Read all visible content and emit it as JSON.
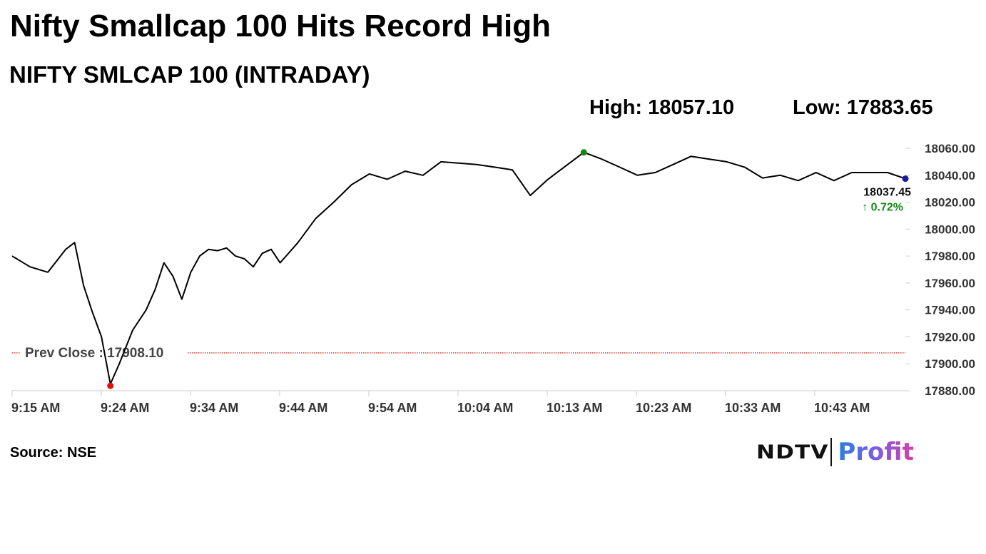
{
  "header": {
    "title": "Nifty Smallcap 100 Hits Record High",
    "subtitle": "NIFTY SMLCAP 100 (INTRADAY)",
    "high_label": "High: 18057.10",
    "low_label": "Low: 17883.65"
  },
  "footer": {
    "source": "Source: NSE",
    "logo_ndtv": "NDTV",
    "logo_profit": "Profit"
  },
  "colors": {
    "line": "#000000",
    "prev_close": "#cc0000",
    "high_marker": "#118811",
    "low_marker": "#dd1111",
    "last_marker": "#1a1aa8",
    "change": "#138a13"
  },
  "chart_data": {
    "type": "line",
    "ylim": [
      17880,
      18060
    ],
    "yticks": [
      "18060.00",
      "18040.00",
      "18020.00",
      "18000.00",
      "17980.00",
      "17960.00",
      "17940.00",
      "17920.00",
      "17900.00",
      "17880.00"
    ],
    "xticks": [
      "9:15 AM",
      "9:24 AM",
      "9:34 AM",
      "9:44 AM",
      "9:54 AM",
      "10:04 AM",
      "10:13 AM",
      "10:23 AM",
      "10:33 AM",
      "10:43 AM"
    ],
    "prev_close": 17908.1,
    "prev_close_label": "Prev Close : 17908.10",
    "high": 18057.1,
    "low": 17883.65,
    "last": 18037.45,
    "last_label": "18037.45",
    "change_label": "↑ 0.72%",
    "series": [
      {
        "x": [
          0,
          2,
          4,
          6,
          7,
          8,
          9,
          10,
          11,
          12,
          13.5,
          15,
          16,
          17,
          18,
          19,
          20,
          21,
          22,
          23,
          24,
          25,
          26,
          27,
          28,
          29,
          30,
          32,
          34,
          36,
          38,
          40,
          42,
          44,
          46,
          48,
          50,
          52,
          54,
          56,
          58,
          60,
          62,
          64,
          66,
          68,
          70,
          72,
          74,
          76,
          78,
          80,
          82,
          84,
          86,
          88,
          90,
          92,
          94,
          96,
          98,
          100
        ],
        "values": [
          17980,
          17972,
          17968,
          17985,
          17990,
          17958,
          17938,
          17920,
          17885,
          17900,
          17925,
          17940,
          17955,
          17975,
          17965,
          17948,
          17968,
          17980,
          17985,
          17984,
          17986,
          17980,
          17978,
          17972,
          17982,
          17985,
          17975,
          17990,
          18008,
          18020,
          18033,
          18041,
          18037,
          18043,
          18040,
          18050,
          18049,
          18048,
          18046,
          18044,
          18025,
          18037,
          18047,
          18057,
          18052,
          18046,
          18040,
          18042,
          18048,
          18054,
          18052,
          18050,
          18046,
          18038,
          18040,
          18036,
          18042,
          18036,
          18042,
          18042,
          18042,
          18037.45
        ]
      }
    ]
  }
}
